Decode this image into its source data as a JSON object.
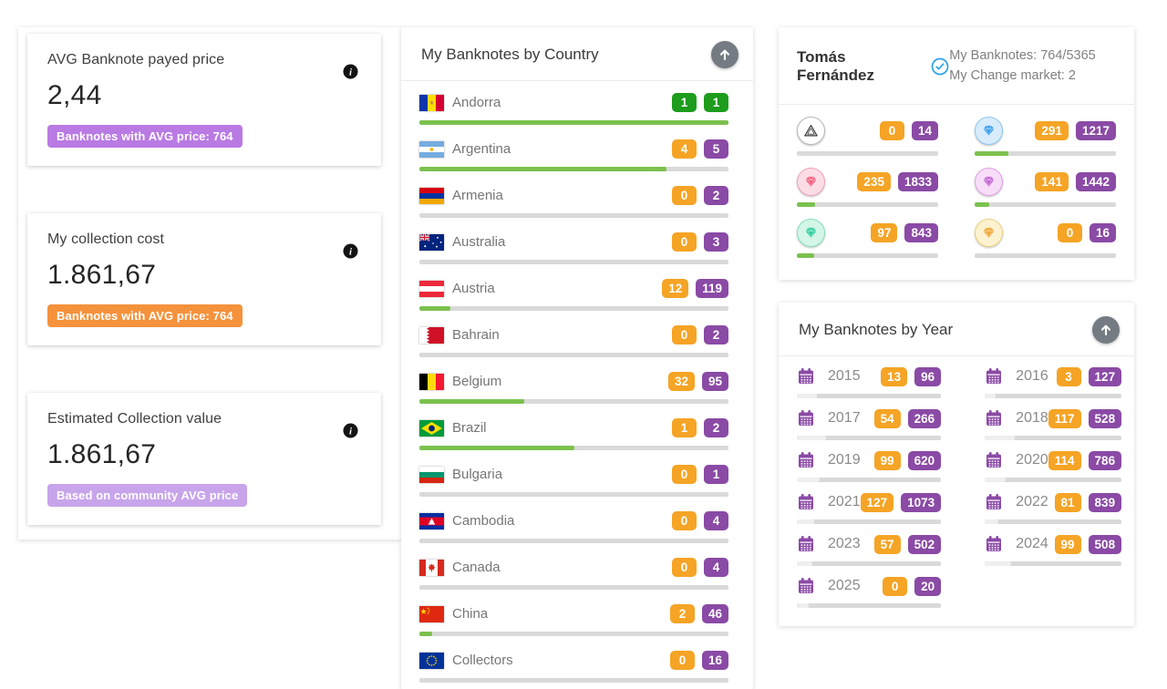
{
  "stat_cards": [
    {
      "title": "AVG Banknote payed price",
      "value": "2,44",
      "badge": "Banknotes with AVG price: 764",
      "badge_color": "#b97ae3"
    },
    {
      "title": "My collection cost",
      "value": "1.861,67",
      "badge": "Banknotes with AVG price: 764",
      "badge_color": "#f5923c"
    },
    {
      "title": "Estimated Collection value",
      "value": "1.861,67",
      "badge": "Based on community AVG price",
      "badge_color": "#c8a4ea"
    }
  ],
  "country_card": {
    "title": "My Banknotes by Country",
    "items": [
      {
        "name": "Andorra",
        "flag": "ad",
        "owned": 1,
        "total": 1
      },
      {
        "name": "Argentina",
        "flag": "ar",
        "owned": 4,
        "total": 5
      },
      {
        "name": "Armenia",
        "flag": "am",
        "owned": 0,
        "total": 2
      },
      {
        "name": "Australia",
        "flag": "au",
        "owned": 0,
        "total": 3
      },
      {
        "name": "Austria",
        "flag": "at",
        "owned": 12,
        "total": 119
      },
      {
        "name": "Bahrain",
        "flag": "bh",
        "owned": 0,
        "total": 2
      },
      {
        "name": "Belgium",
        "flag": "be",
        "owned": 32,
        "total": 95
      },
      {
        "name": "Brazil",
        "flag": "br",
        "owned": 1,
        "total": 2
      },
      {
        "name": "Bulgaria",
        "flag": "bg",
        "owned": 0,
        "total": 1
      },
      {
        "name": "Cambodia",
        "flag": "kh",
        "owned": 0,
        "total": 4
      },
      {
        "name": "Canada",
        "flag": "ca",
        "owned": 0,
        "total": 4
      },
      {
        "name": "China",
        "flag": "cn",
        "owned": 2,
        "total": 46
      },
      {
        "name": "Collectors",
        "flag": "eu",
        "owned": 0,
        "total": 16
      }
    ]
  },
  "user_card": {
    "name": "Tomás Fernández",
    "banknotes_line": "My Banknotes: 764/5365",
    "market_line": "My Change market: 2",
    "grades": [
      {
        "icon": "triangle-logo",
        "owned": 0,
        "total": 14
      },
      {
        "icon": "blue-gem",
        "owned": 291,
        "total": 1217
      },
      {
        "icon": "pink-gem",
        "owned": 235,
        "total": 1833
      },
      {
        "icon": "magenta-gem",
        "owned": 141,
        "total": 1442
      },
      {
        "icon": "mint-gem",
        "owned": 97,
        "total": 843
      },
      {
        "icon": "yellow-gem",
        "owned": 0,
        "total": 16
      }
    ]
  },
  "year_card": {
    "title": "My Banknotes by Year",
    "items": [
      {
        "year": "2015",
        "owned": 13,
        "total": 96
      },
      {
        "year": "2016",
        "owned": 3,
        "total": 127
      },
      {
        "year": "2017",
        "owned": 54,
        "total": 266
      },
      {
        "year": "2018",
        "owned": 117,
        "total": 528
      },
      {
        "year": "2019",
        "owned": 99,
        "total": 620
      },
      {
        "year": "2020",
        "owned": 114,
        "total": 786
      },
      {
        "year": "2021",
        "owned": 127,
        "total": 1073
      },
      {
        "year": "2022",
        "owned": 81,
        "total": 839
      },
      {
        "year": "2023",
        "owned": 57,
        "total": 502
      },
      {
        "year": "2024",
        "owned": 99,
        "total": 508
      },
      {
        "year": "2025",
        "owned": 0,
        "total": 20
      }
    ]
  },
  "colors": {
    "orange_badge": "#f5a425",
    "purple_badge": "#8a4aa5",
    "green_badge": "#1d9c1d",
    "green_bar": "#7cc14e",
    "bar_track": "#d9d9d9",
    "year_bar_fill": "#efefef",
    "verified_blue": "#2aa3e8",
    "calendar_purple": "#8a4aa5",
    "arrow_button": "#747b83"
  }
}
